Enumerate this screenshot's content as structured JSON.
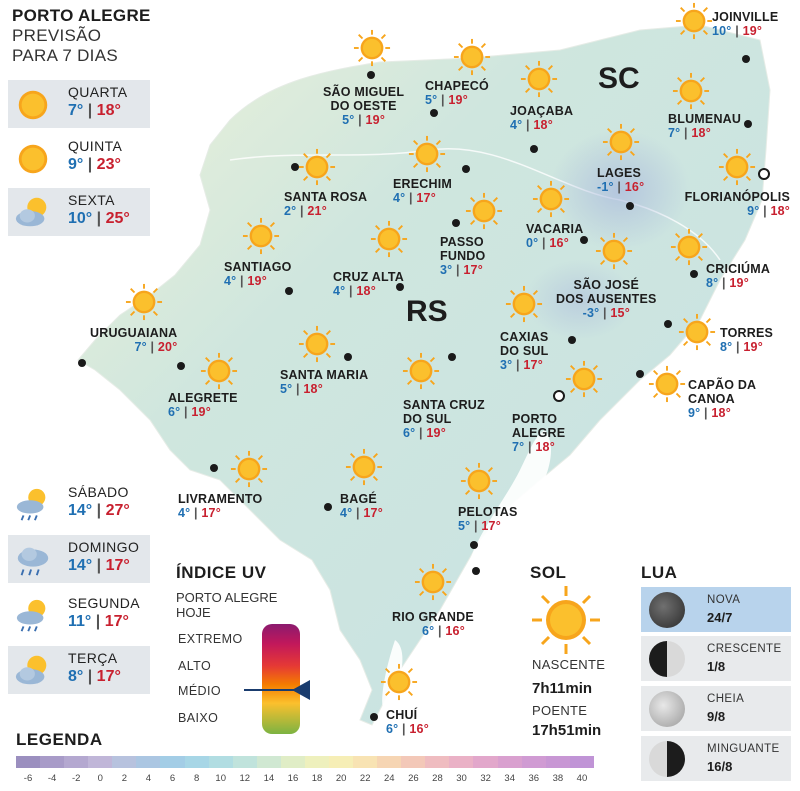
{
  "header": {
    "line1": "PORTO ALEGRE",
    "line2": "PREVISÃO",
    "line3": "PARA 7 DIAS"
  },
  "forecast_top": [
    {
      "day": "QUARTA",
      "min": "7°",
      "max": "18°",
      "icon": "sun-icon"
    },
    {
      "day": "QUINTA",
      "min": "9°",
      "max": "23°",
      "icon": "sun-icon"
    },
    {
      "day": "SEXTA",
      "min": "10°",
      "max": "25°",
      "icon": "sun-cloud-icon"
    }
  ],
  "forecast_bottom": [
    {
      "day": "SÁBADO",
      "min": "14°",
      "max": "27°",
      "icon": "sun-cloud-rain-icon"
    },
    {
      "day": "DOMINGO",
      "min": "14°",
      "max": "17°",
      "icon": "cloud-rain-icon"
    },
    {
      "day": "SEGUNDA",
      "min": "11°",
      "max": "17°",
      "icon": "sun-cloud-rain-icon"
    },
    {
      "day": "TERÇA",
      "min": "8°",
      "max": "17°",
      "icon": "sun-cloud-icon"
    }
  ],
  "states": {
    "sc": "SC",
    "rs": "RS"
  },
  "cities": [
    {
      "name": "JOINVILLE",
      "min": "10°",
      "max": "19°"
    },
    {
      "name": "SÃO MIGUEL\nDO OESTE",
      "min": "5°",
      "max": "19°"
    },
    {
      "name": "CHAPECÓ",
      "min": "5°",
      "max": "19°"
    },
    {
      "name": "JOAÇABA",
      "min": "4°",
      "max": "18°"
    },
    {
      "name": "BLUMENAU",
      "min": "7°",
      "max": "18°"
    },
    {
      "name": "LAGES",
      "min": "-1°",
      "max": "16°"
    },
    {
      "name": "FLORIANÓPOLIS",
      "min": "9°",
      "max": "18°"
    },
    {
      "name": "SANTA ROSA",
      "min": "2°",
      "max": "21°"
    },
    {
      "name": "ERECHIM",
      "min": "4°",
      "max": "17°"
    },
    {
      "name": "VACARIA",
      "min": "0°",
      "max": "16°"
    },
    {
      "name": "PASSO\nFUNDO",
      "min": "3°",
      "max": "17°"
    },
    {
      "name": "SANTIAGO",
      "min": "4°",
      "max": "19°"
    },
    {
      "name": "CRUZ ALTA",
      "min": "4°",
      "max": "18°"
    },
    {
      "name": "SÃO JOSÉ\nDOS AUSENTES",
      "min": "-3°",
      "max": "15°"
    },
    {
      "name": "CRICIÚMA",
      "min": "8°",
      "max": "19°"
    },
    {
      "name": "URUGUAIANA",
      "min": "7°",
      "max": "20°"
    },
    {
      "name": "TORRES",
      "min": "8°",
      "max": "19°"
    },
    {
      "name": "CAXIAS\nDO SUL",
      "min": "3°",
      "max": "17°"
    },
    {
      "name": "SANTA MARIA",
      "min": "5°",
      "max": "18°"
    },
    {
      "name": "ALEGRETE",
      "min": "6°",
      "max": "19°"
    },
    {
      "name": "CAPÃO DA\nCANOA",
      "min": "9°",
      "max": "18°"
    },
    {
      "name": "SANTA CRUZ\nDO SUL",
      "min": "6°",
      "max": "19°"
    },
    {
      "name": "PORTO\nALEGRE",
      "min": "7°",
      "max": "18°"
    },
    {
      "name": "LIVRAMENTO",
      "min": "4°",
      "max": "17°"
    },
    {
      "name": "BAGÉ",
      "min": "4°",
      "max": "17°"
    },
    {
      "name": "PELOTAS",
      "min": "5°",
      "max": "17°"
    },
    {
      "name": "RIO GRANDE",
      "min": "6°",
      "max": "16°"
    },
    {
      "name": "CHUÍ",
      "min": "6°",
      "max": "16°"
    }
  ],
  "uv": {
    "title": "ÍNDICE UV",
    "subtitle_1": "PORTO ALEGRE",
    "subtitle_2": "HOJE",
    "levels": [
      "EXTREMO",
      "ALTO",
      "MÉDIO",
      "BAIXO"
    ],
    "current": "MÉDIO"
  },
  "sol": {
    "title": "SOL",
    "sunrise_label": "NASCENTE",
    "sunrise": "7h11min",
    "sunset_label": "POENTE",
    "sunset": "17h51min"
  },
  "lua": {
    "title": "LUA",
    "phases": [
      {
        "name": "NOVA",
        "date": "24/7",
        "icon": "new-moon-icon"
      },
      {
        "name": "CRESCENTE",
        "date": "1/8",
        "icon": "first-quarter-moon-icon"
      },
      {
        "name": "CHEIA",
        "date": "9/8",
        "icon": "full-moon-icon"
      },
      {
        "name": "MINGUANTE",
        "date": "16/8",
        "icon": "last-quarter-moon-icon"
      }
    ]
  },
  "legend": {
    "title": "LEGENDA",
    "ticks": [
      "-6",
      "-4",
      "-2",
      "0",
      "2",
      "4",
      "6",
      "8",
      "10",
      "12",
      "14",
      "16",
      "18",
      "20",
      "22",
      "24",
      "26",
      "28",
      "30",
      "32",
      "34",
      "36",
      "38",
      "40"
    ],
    "colors": [
      "#9b8fbf",
      "#a89bc8",
      "#b4a8d0",
      "#c0b6d8",
      "#b7c2de",
      "#abc6e2",
      "#a3cde6",
      "#a7d6e6",
      "#b1dde2",
      "#c0e3dc",
      "#d0e8d2",
      "#e0edc6",
      "#eef0bd",
      "#f6eeb6",
      "#f8e3b3",
      "#f6d5b3",
      "#f3c8b8",
      "#efbcc0",
      "#eab1c6",
      "#e2a7cb",
      "#d9a0cf",
      "#d09bd3",
      "#c897d4",
      "#c094d6"
    ]
  }
}
